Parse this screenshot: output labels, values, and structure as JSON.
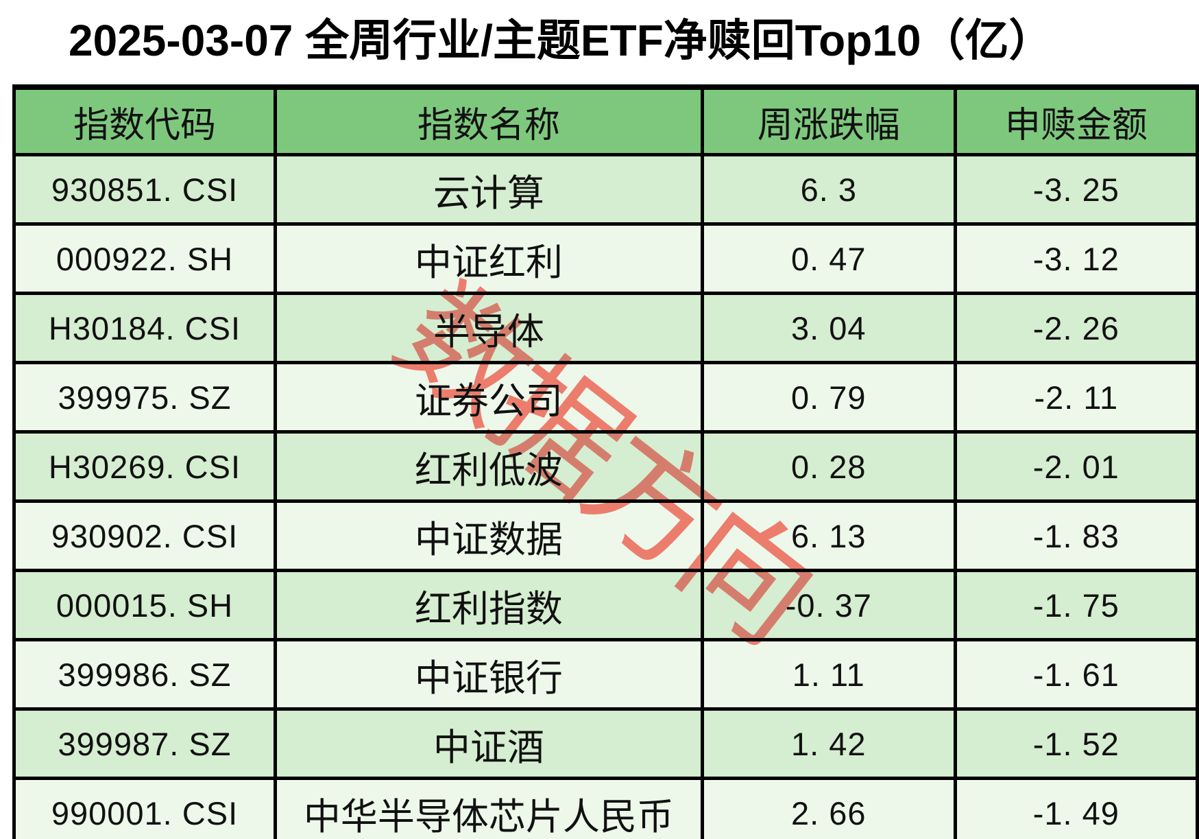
{
  "title": "2025-03-07 全周行业/主题ETF净赎回Top10（亿）",
  "watermark": {
    "text": "数据方向",
    "color": "#ec7d6c"
  },
  "colors": {
    "header_green": "#7ec87e",
    "row_green_dark": "#d5edd0",
    "row_green_light": "#edf7ea",
    "border_black": "#000000",
    "watermark_salmon": "#ec7d6c"
  },
  "table": {
    "columns": [
      "指数代码",
      "指数名称",
      "周涨跌幅",
      "申赎金额"
    ],
    "rows": [
      {
        "code": "930851. CSI",
        "name": "云计算",
        "weekly_change": "6. 3",
        "redemption": "-3. 25"
      },
      {
        "code": "000922. SH",
        "name": "中证红利",
        "weekly_change": "0. 47",
        "redemption": "-3. 12"
      },
      {
        "code": "H30184. CSI",
        "name": "半导体",
        "weekly_change": "3. 04",
        "redemption": "-2. 26"
      },
      {
        "code": "399975. SZ",
        "name": "证券公司",
        "weekly_change": "0. 79",
        "redemption": "-2. 11"
      },
      {
        "code": "H30269. CSI",
        "name": "红利低波",
        "weekly_change": "0. 28",
        "redemption": "-2. 01"
      },
      {
        "code": "930902. CSI",
        "name": "中证数据",
        "weekly_change": "6. 13",
        "redemption": "-1. 83"
      },
      {
        "code": "000015. SH",
        "name": "红利指数",
        "weekly_change": "-0. 37",
        "redemption": "-1. 75"
      },
      {
        "code": "399986. SZ",
        "name": "中证银行",
        "weekly_change": "1. 11",
        "redemption": "-1. 61"
      },
      {
        "code": "399987. SZ",
        "name": "中证酒",
        "weekly_change": "1. 42",
        "redemption": "-1. 52"
      },
      {
        "code": "990001. CSI",
        "name": "中华半导体芯片人民币",
        "weekly_change": "2. 66",
        "redemption": "-1. 49"
      }
    ]
  },
  "chart_data": {
    "type": "table",
    "title": "2025-03-07 全周行业/主题ETF净赎回Top10（亿）",
    "columns": [
      "指数代码",
      "指数名称",
      "周涨跌幅",
      "申赎金额"
    ],
    "rows": [
      [
        "930851.CSI",
        "云计算",
        6.3,
        -3.25
      ],
      [
        "000922.SH",
        "中证红利",
        0.47,
        -3.12
      ],
      [
        "H30184.CSI",
        "半导体",
        3.04,
        -2.26
      ],
      [
        "399975.SZ",
        "证券公司",
        0.79,
        -2.11
      ],
      [
        "H30269.CSI",
        "红利低波",
        0.28,
        -2.01
      ],
      [
        "930902.CSI",
        "中证数据",
        6.13,
        -1.83
      ],
      [
        "000015.SH",
        "红利指数",
        -0.37,
        -1.75
      ],
      [
        "399986.SZ",
        "中证银行",
        1.11,
        -1.61
      ],
      [
        "399987.SZ",
        "中证酒",
        1.42,
        -1.52
      ],
      [
        "990001.CSI",
        "中华半导体芯片人民币",
        2.66,
        -1.49
      ]
    ]
  }
}
